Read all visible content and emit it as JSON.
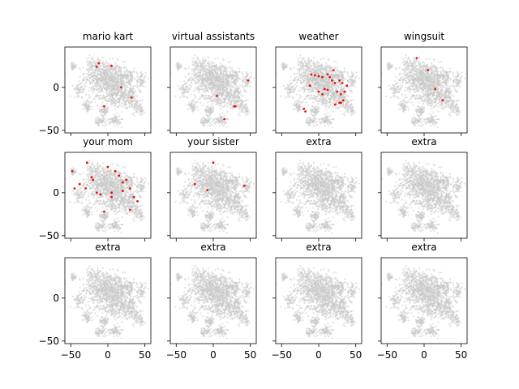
{
  "chart_data": {
    "type": "scatter",
    "layout": {
      "rows": 3,
      "cols": 4,
      "sharex": true,
      "sharey": true
    },
    "xlim": [
      -58,
      58
    ],
    "ylim": [
      -53,
      47
    ],
    "xticks": [
      -50,
      0,
      50
    ],
    "xtick_labels": [
      "−50",
      "0",
      "50"
    ],
    "yticks": [
      -50,
      0
    ],
    "ytick_labels": [
      "−50",
      "0"
    ],
    "background_color": "#c8c8c8",
    "highlight_color": "#e8140c",
    "background_clusters": [
      {
        "x": -5,
        "y": 12,
        "spread": [
          13,
          9
        ],
        "n": 520
      },
      {
        "x": 15,
        "y": 6,
        "spread": [
          10,
          8
        ],
        "n": 260
      },
      {
        "x": 8,
        "y": -10,
        "spread": [
          12,
          7
        ],
        "n": 240
      },
      {
        "x": 30,
        "y": -12,
        "spread": [
          6,
          6
        ],
        "n": 120
      },
      {
        "x": 28,
        "y": 14,
        "spread": [
          5,
          4
        ],
        "n": 60
      },
      {
        "x": 45,
        "y": 8,
        "spread": [
          3,
          6
        ],
        "n": 60
      },
      {
        "x": -38,
        "y": -2,
        "spread": [
          4,
          4
        ],
        "n": 55
      },
      {
        "x": -47,
        "y": 24,
        "spread": [
          2,
          2
        ],
        "n": 30
      },
      {
        "x": -28,
        "y": -22,
        "spread": [
          3,
          3
        ],
        "n": 55
      },
      {
        "x": -5,
        "y": -27,
        "spread": [
          3,
          3
        ],
        "n": 60
      },
      {
        "x": 10,
        "y": -38,
        "spread": [
          4,
          3
        ],
        "n": 70
      },
      {
        "x": -10,
        "y": -40,
        "spread": [
          4,
          3
        ],
        "n": 60
      },
      {
        "x": 40,
        "y": -22,
        "spread": [
          4,
          4
        ],
        "n": 50
      },
      {
        "x": -20,
        "y": 28,
        "spread": [
          5,
          4
        ],
        "n": 60
      },
      {
        "x": 45,
        "y": -28,
        "spread": [
          2,
          2
        ],
        "n": 20
      }
    ],
    "panels": [
      {
        "title": "mario kart",
        "points": [
          [
            -15,
            24
          ],
          [
            -12,
            28
          ],
          [
            5,
            25
          ],
          [
            18,
            0
          ],
          [
            32,
            -12
          ],
          [
            -5,
            -22
          ]
        ]
      },
      {
        "title": "virtual assistants",
        "points": [
          [
            47,
            8
          ],
          [
            5,
            -10
          ],
          [
            28,
            -22
          ],
          [
            30,
            -22
          ],
          [
            15,
            -37
          ]
        ]
      },
      {
        "title": "weather",
        "points": [
          [
            -10,
            15
          ],
          [
            -5,
            14
          ],
          [
            0,
            13
          ],
          [
            5,
            12
          ],
          [
            12,
            15
          ],
          [
            15,
            12
          ],
          [
            18,
            8
          ],
          [
            22,
            5
          ],
          [
            28,
            8
          ],
          [
            32,
            5
          ],
          [
            25,
            -5
          ],
          [
            30,
            -8
          ],
          [
            35,
            -5
          ],
          [
            33,
            -15
          ],
          [
            28,
            -18
          ],
          [
            22,
            -20
          ],
          [
            -12,
            2
          ],
          [
            0,
            -5
          ],
          [
            5,
            -8
          ],
          [
            12,
            -3
          ],
          [
            -20,
            -25
          ],
          [
            -18,
            -28
          ],
          [
            20,
            20
          ],
          [
            38,
            2
          ],
          [
            30,
            -18
          ],
          [
            8,
            -2
          ]
        ]
      },
      {
        "title": "wingsuit",
        "points": [
          [
            -10,
            34
          ],
          [
            5,
            20
          ],
          [
            15,
            -2
          ],
          [
            25,
            -15
          ]
        ]
      },
      {
        "title": "your mom",
        "points": [
          [
            -48,
            25
          ],
          [
            -45,
            5
          ],
          [
            -38,
            10
          ],
          [
            -28,
            35
          ],
          [
            -22,
            18
          ],
          [
            -20,
            15
          ],
          [
            -15,
            0
          ],
          [
            -10,
            -2
          ],
          [
            5,
            0
          ],
          [
            5,
            -5
          ],
          [
            10,
            25
          ],
          [
            15,
            20
          ],
          [
            20,
            12
          ],
          [
            25,
            15
          ],
          [
            30,
            5
          ],
          [
            35,
            -5
          ],
          [
            40,
            -10
          ],
          [
            30,
            -20
          ],
          [
            -5,
            -22
          ],
          [
            20,
            2
          ],
          [
            0,
            30
          ],
          [
            -30,
            5
          ]
        ]
      },
      {
        "title": "your sister",
        "points": [
          [
            0,
            35
          ],
          [
            -25,
            10
          ],
          [
            -8,
            3
          ],
          [
            42,
            8
          ]
        ]
      },
      {
        "title": "extra",
        "points": []
      },
      {
        "title": "extra",
        "points": []
      },
      {
        "title": "extra",
        "points": []
      },
      {
        "title": "extra",
        "points": []
      },
      {
        "title": "extra",
        "points": []
      },
      {
        "title": "extra",
        "points": []
      }
    ]
  }
}
